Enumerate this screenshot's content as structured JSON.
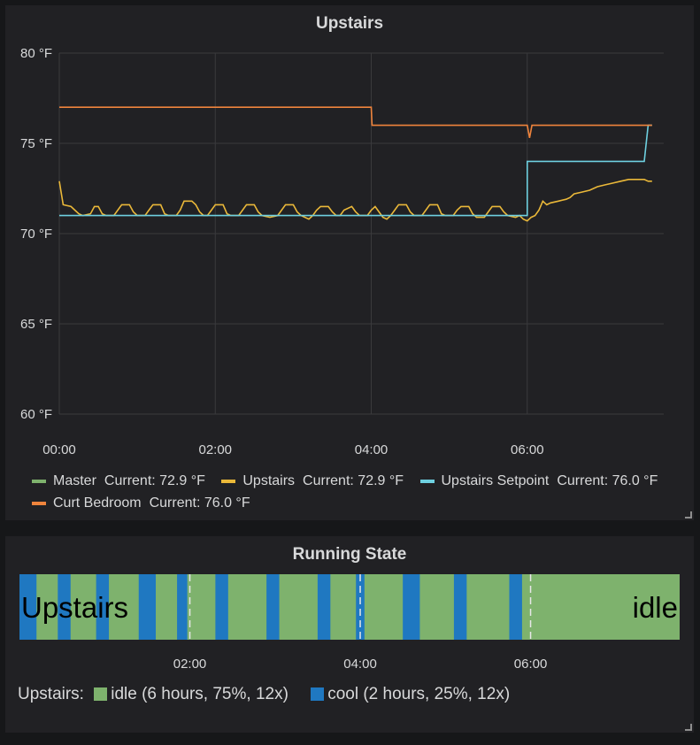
{
  "chart_data": [
    {
      "type": "line",
      "title": "Upstairs",
      "unit": "°F",
      "y_ticks": [
        "80 °F",
        "75 °F",
        "70 °F",
        "65 °F",
        "60 °F"
      ],
      "ylim": [
        60,
        80
      ],
      "x_ticks": [
        "00:00",
        "02:00",
        "04:00",
        "06:00"
      ],
      "xlim_hours": [
        0,
        7.75
      ],
      "grid": true,
      "series": [
        {
          "name": "Master",
          "color": "#7eb26d",
          "current": "Current: 72.9 °F",
          "points": []
        },
        {
          "name": "Upstairs",
          "color": "#eab839",
          "current": "Current: 72.9 °F",
          "points": [
            [
              0,
              72.9
            ],
            [
              0.05,
              71.6
            ],
            [
              0.15,
              71.5
            ],
            [
              0.2,
              71.3
            ],
            [
              0.25,
              71.1
            ],
            [
              0.3,
              71
            ],
            [
              0.4,
              71.1
            ],
            [
              0.45,
              71.5
            ],
            [
              0.5,
              71.5
            ],
            [
              0.55,
              71.1
            ],
            [
              0.6,
              71
            ],
            [
              0.7,
              71
            ],
            [
              0.75,
              71.3
            ],
            [
              0.8,
              71.6
            ],
            [
              0.9,
              71.6
            ],
            [
              0.95,
              71.2
            ],
            [
              1.0,
              71
            ],
            [
              1.1,
              71
            ],
            [
              1.15,
              71.3
            ],
            [
              1.2,
              71.6
            ],
            [
              1.3,
              71.6
            ],
            [
              1.35,
              71.1
            ],
            [
              1.4,
              71
            ],
            [
              1.5,
              71
            ],
            [
              1.55,
              71.3
            ],
            [
              1.6,
              71.8
            ],
            [
              1.7,
              71.8
            ],
            [
              1.75,
              71.6
            ],
            [
              1.8,
              71.2
            ],
            [
              1.85,
              71
            ],
            [
              1.9,
              71
            ],
            [
              1.95,
              71.3
            ],
            [
              2.0,
              71.6
            ],
            [
              2.1,
              71.6
            ],
            [
              2.15,
              71.1
            ],
            [
              2.2,
              71
            ],
            [
              2.3,
              71
            ],
            [
              2.35,
              71.3
            ],
            [
              2.4,
              71.6
            ],
            [
              2.5,
              71.6
            ],
            [
              2.55,
              71.2
            ],
            [
              2.6,
              71
            ],
            [
              2.7,
              70.9
            ],
            [
              2.8,
              71
            ],
            [
              2.85,
              71.3
            ],
            [
              2.9,
              71.6
            ],
            [
              3.0,
              71.6
            ],
            [
              3.05,
              71.2
            ],
            [
              3.1,
              71
            ],
            [
              3.2,
              70.8
            ],
            [
              3.25,
              71
            ],
            [
              3.3,
              71.3
            ],
            [
              3.35,
              71.5
            ],
            [
              3.45,
              71.5
            ],
            [
              3.5,
              71.2
            ],
            [
              3.55,
              71
            ],
            [
              3.6,
              71
            ],
            [
              3.65,
              71.3
            ],
            [
              3.75,
              71.5
            ],
            [
              3.8,
              71.2
            ],
            [
              3.85,
              71
            ],
            [
              3.95,
              71
            ],
            [
              4.0,
              71.3
            ],
            [
              4.05,
              71.5
            ],
            [
              4.1,
              71.2
            ],
            [
              4.15,
              70.9
            ],
            [
              4.2,
              70.8
            ],
            [
              4.25,
              71
            ],
            [
              4.3,
              71.3
            ],
            [
              4.35,
              71.6
            ],
            [
              4.45,
              71.6
            ],
            [
              4.5,
              71.2
            ],
            [
              4.55,
              71
            ],
            [
              4.65,
              71
            ],
            [
              4.7,
              71.3
            ],
            [
              4.75,
              71.6
            ],
            [
              4.85,
              71.6
            ],
            [
              4.9,
              71.1
            ],
            [
              4.95,
              71
            ],
            [
              5.05,
              71
            ],
            [
              5.1,
              71.3
            ],
            [
              5.15,
              71.5
            ],
            [
              5.25,
              71.5
            ],
            [
              5.3,
              71.1
            ],
            [
              5.35,
              70.9
            ],
            [
              5.45,
              70.9
            ],
            [
              5.5,
              71.2
            ],
            [
              5.55,
              71.5
            ],
            [
              5.65,
              71.5
            ],
            [
              5.7,
              71.2
            ],
            [
              5.75,
              71
            ],
            [
              5.85,
              70.9
            ],
            [
              5.9,
              71
            ],
            [
              5.95,
              70.8
            ],
            [
              6.0,
              70.7
            ],
            [
              6.05,
              70.9
            ],
            [
              6.1,
              71
            ],
            [
              6.15,
              71.3
            ],
            [
              6.2,
              71.8
            ],
            [
              6.25,
              71.6
            ],
            [
              6.3,
              71.7
            ],
            [
              6.4,
              71.8
            ],
            [
              6.5,
              71.9
            ],
            [
              6.55,
              72
            ],
            [
              6.6,
              72.2
            ],
            [
              6.7,
              72.3
            ],
            [
              6.8,
              72.4
            ],
            [
              6.9,
              72.6
            ],
            [
              7.0,
              72.7
            ],
            [
              7.1,
              72.8
            ],
            [
              7.2,
              72.9
            ],
            [
              7.3,
              73
            ],
            [
              7.4,
              73
            ],
            [
              7.5,
              73
            ],
            [
              7.55,
              72.9
            ],
            [
              7.6,
              72.9
            ]
          ]
        },
        {
          "name": "Upstairs Setpoint",
          "color": "#6ed0e0",
          "current": "Current: 76.0 °F",
          "points": [
            [
              0,
              71
            ],
            [
              6.0,
              71
            ],
            [
              6.0,
              74
            ],
            [
              7.5,
              74
            ],
            [
              7.55,
              76
            ],
            [
              7.6,
              76
            ]
          ]
        },
        {
          "name": "Curt Bedroom",
          "color": "#ef843c",
          "current": "Current: 76.0 °F",
          "points": [
            [
              0,
              77
            ],
            [
              4.0,
              77
            ],
            [
              4.01,
              76
            ],
            [
              6.0,
              76
            ],
            [
              6.03,
              75.3
            ],
            [
              6.06,
              76
            ],
            [
              7.6,
              76
            ]
          ]
        }
      ]
    },
    {
      "type": "state-timeline",
      "title": "Running State",
      "row_label": "Upstairs",
      "current_state": "idle",
      "x_ticks": [
        "02:00",
        "04:00",
        "06:00"
      ],
      "xlim_hours": [
        0,
        7.75
      ],
      "state_colors": {
        "idle": "#7eb26d",
        "cool": "#1f78c1"
      },
      "cool_intervals": [
        [
          0.0,
          0.2
        ],
        [
          0.45,
          0.6
        ],
        [
          0.9,
          1.05
        ],
        [
          1.4,
          1.6
        ],
        [
          1.85,
          1.97
        ],
        [
          2.3,
          2.45
        ],
        [
          2.9,
          3.05
        ],
        [
          3.5,
          3.65
        ],
        [
          3.95,
          4.05
        ],
        [
          4.5,
          4.7
        ],
        [
          5.1,
          5.25
        ],
        [
          5.75,
          5.9
        ]
      ],
      "legend": [
        {
          "state": "idle",
          "text": "idle (6 hours, 75%, 12x)"
        },
        {
          "state": "cool",
          "text": "cool (2 hours, 25%, 12x)"
        }
      ]
    }
  ],
  "legend_prefix": "Upstairs:"
}
